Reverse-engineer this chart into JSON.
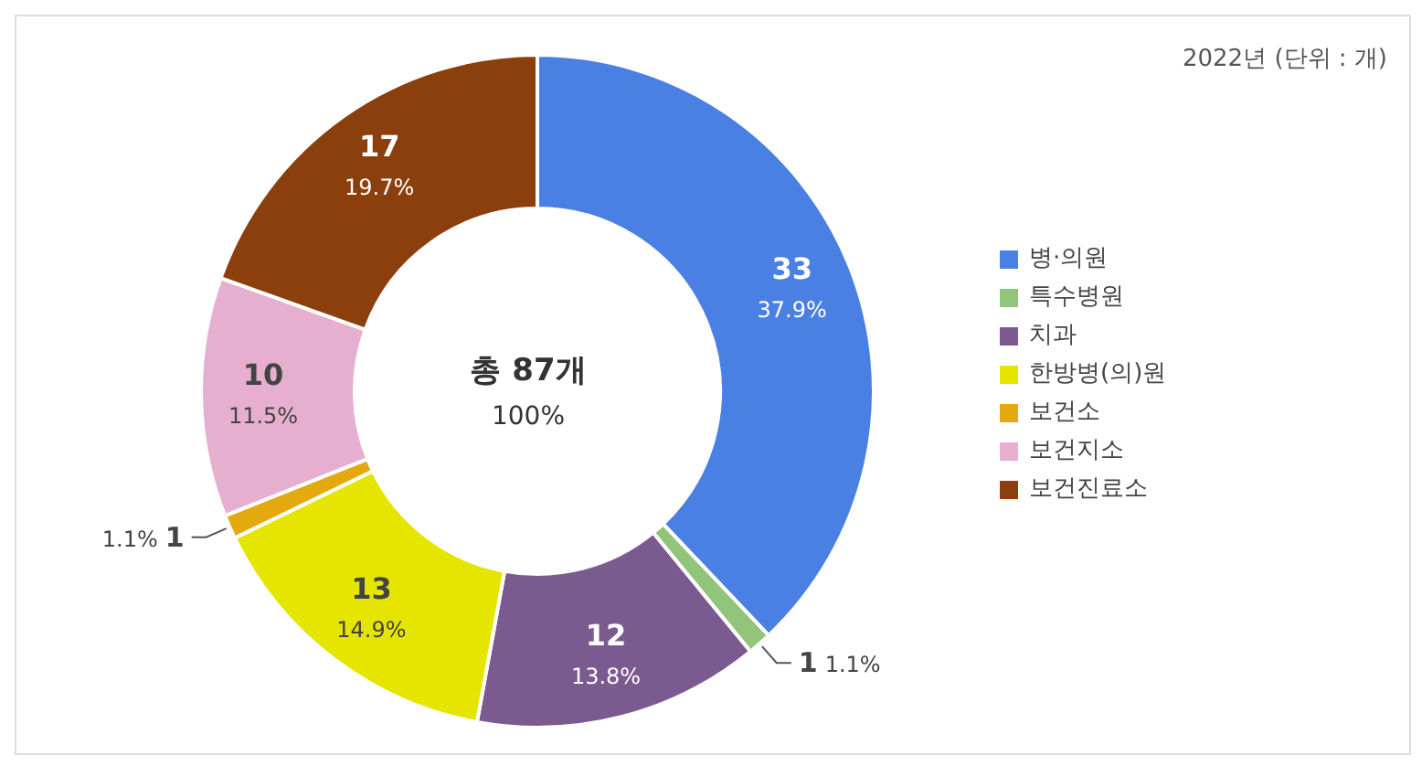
{
  "chart_data": {
    "type": "donut",
    "annotations": [
      "2022년 (단위 : 개)",
      "총 87개",
      "100%"
    ],
    "categories": [
      "병·의원",
      "특수병원",
      "치과",
      "한방병(의)원",
      "보건소",
      "보건지소",
      "보건진료소"
    ],
    "values": [
      33,
      1,
      12,
      13,
      1,
      10,
      17
    ],
    "value_labels": [
      "33\n37.9%",
      "1\n1.1%",
      "12\n13.8%",
      "13\n14.9%",
      "1.1%\n1",
      "10\n11.5%",
      "17\n19.7%"
    ],
    "colors": [
      "#4a7fe3",
      "#92c47c",
      "#7b5a8f",
      "#e5e500",
      "#e3a90e",
      "#e6afd0",
      "#8b3f0d"
    ],
    "legend": "right"
  }
}
